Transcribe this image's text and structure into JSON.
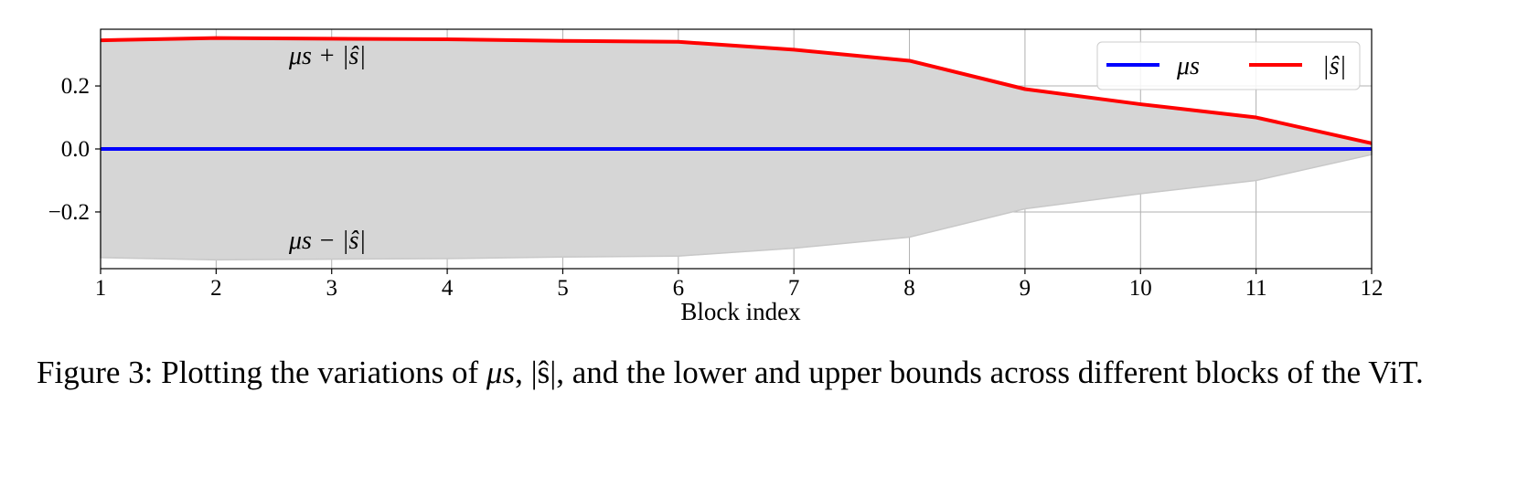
{
  "chart_data": {
    "type": "line",
    "x": [
      1,
      2,
      3,
      4,
      5,
      6,
      7,
      8,
      9,
      10,
      11,
      12
    ],
    "series": [
      {
        "name": "μs",
        "color": "#0000ff",
        "values": [
          0,
          0,
          0,
          0,
          0,
          0,
          0,
          0,
          0,
          0,
          0,
          0
        ]
      },
      {
        "name": "|ŝ|",
        "color": "#ff0000",
        "values": [
          0.345,
          0.352,
          0.35,
          0.348,
          0.343,
          0.34,
          0.315,
          0.28,
          0.19,
          0.142,
          0.1,
          0.018
        ]
      }
    ],
    "band": {
      "upper_label": "μs + |ŝ|",
      "lower_label": "μs − |ŝ|",
      "color": "#d6d6d6"
    },
    "xlabel": "Block index",
    "xlim": [
      1,
      12
    ],
    "ylim": [
      -0.38,
      0.38
    ],
    "xticks": [
      "1",
      "2",
      "3",
      "4",
      "5",
      "6",
      "7",
      "8",
      "9",
      "10",
      "11",
      "12"
    ],
    "yticks": [
      {
        "value": 0.2,
        "label": "0.2"
      },
      {
        "value": 0.0,
        "label": "0.0"
      },
      {
        "value": -0.2,
        "label": "−0.2"
      }
    ],
    "grid": true,
    "legend_position": "top-right"
  },
  "caption": {
    "prefix": "Figure 3: Plotting the variations of ",
    "mu": "μs",
    "sep1": ", ",
    "s": "|ŝ|",
    "suffix": ", and the lower and upper bounds across different blocks of the ViT."
  }
}
